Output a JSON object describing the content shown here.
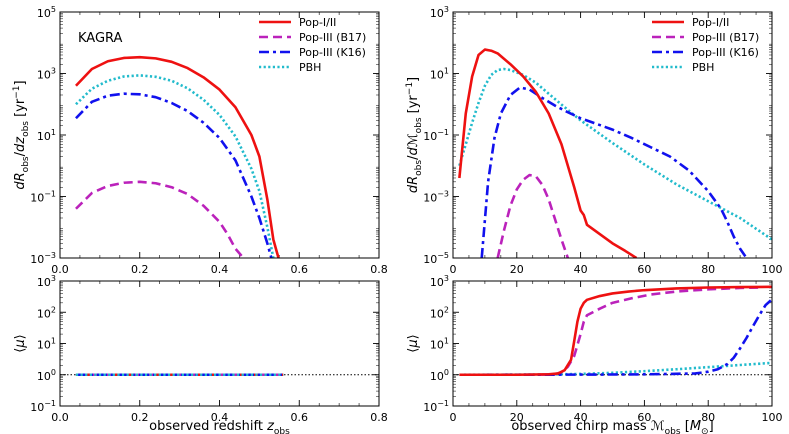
{
  "colors": {
    "pop12": "#ee1111",
    "pop3b17": "#bb22bb",
    "pop3k16": "#1111ee",
    "pbh": "#22bbcc",
    "ref_line": "#000000"
  },
  "chart_data": [
    {
      "type": "line",
      "panel": "top-left",
      "annotation": "KAGRA",
      "xlabel": "",
      "ylabel": "dR_obs/dz_obs [yr^-1]",
      "xlim": [
        0,
        0.8
      ],
      "ylim": [
        0.001,
        100000
      ],
      "yscale": "log",
      "x_ticks": [
        "0.0",
        "0.2",
        "0.4",
        "0.6",
        "0.8"
      ],
      "y_ticks": [
        "10^-3",
        "10^-1",
        "10^1",
        "10^3",
        "10^5"
      ],
      "legend": "top-right",
      "series": [
        {
          "name": "Pop-I/II",
          "style": "solid",
          "x": [
            0.04,
            0.08,
            0.12,
            0.16,
            0.2,
            0.24,
            0.28,
            0.32,
            0.36,
            0.4,
            0.44,
            0.48,
            0.5,
            0.52,
            0.535,
            0.548
          ],
          "y": [
            400,
            1400,
            2500,
            3200,
            3400,
            3100,
            2400,
            1500,
            750,
            300,
            80,
            10,
            2,
            0.08,
            0.004,
            0.001
          ]
        },
        {
          "name": "Pop-III (B17)",
          "style": "dashed",
          "x": [
            0.04,
            0.08,
            0.12,
            0.16,
            0.2,
            0.24,
            0.28,
            0.32,
            0.36,
            0.4,
            0.42,
            0.44,
            0.46
          ],
          "y": [
            0.04,
            0.13,
            0.22,
            0.28,
            0.3,
            0.27,
            0.2,
            0.12,
            0.05,
            0.015,
            0.006,
            0.002,
            0.001
          ]
        },
        {
          "name": "Pop-III (K16)",
          "style": "dashdot",
          "x": [
            0.04,
            0.08,
            0.12,
            0.16,
            0.2,
            0.24,
            0.28,
            0.32,
            0.36,
            0.4,
            0.44,
            0.48,
            0.5,
            0.52,
            0.53
          ],
          "y": [
            35,
            120,
            190,
            220,
            210,
            170,
            110,
            60,
            25,
            8,
            1.5,
            0.1,
            0.02,
            0.003,
            0.001
          ]
        },
        {
          "name": "PBH",
          "style": "dotted",
          "x": [
            0.04,
            0.08,
            0.12,
            0.16,
            0.2,
            0.24,
            0.28,
            0.32,
            0.36,
            0.4,
            0.44,
            0.48,
            0.5,
            0.52,
            0.535
          ],
          "y": [
            100,
            320,
            580,
            800,
            870,
            780,
            580,
            330,
            140,
            45,
            9,
            0.8,
            0.15,
            0.01,
            0.001
          ]
        }
      ]
    },
    {
      "type": "line",
      "panel": "top-right",
      "xlabel": "",
      "ylabel": "dR_obs/dM_obs [yr^-1]",
      "xlim": [
        0,
        100
      ],
      "ylim": [
        1e-05,
        1000
      ],
      "yscale": "log",
      "x_ticks": [
        "0",
        "20",
        "40",
        "60",
        "80",
        "100"
      ],
      "y_ticks": [
        "10^-5",
        "10^-3",
        "10^-1",
        "10^1",
        "10^3"
      ],
      "legend": "top-right",
      "series": [
        {
          "name": "Pop-I/II",
          "style": "solid",
          "x": [
            2,
            4,
            6,
            8,
            10,
            12,
            14,
            18,
            22,
            26,
            30,
            34,
            38,
            40,
            41,
            42,
            46,
            50,
            54,
            57.5
          ],
          "y": [
            0.004,
            0.5,
            8,
            40,
            60,
            55,
            45,
            20,
            8,
            2.5,
            0.5,
            0.05,
            0.002,
            0.00035,
            0.00025,
            0.00012,
            6e-05,
            3e-05,
            1.7e-05,
            1e-05
          ]
        },
        {
          "name": "Pop-III (B17)",
          "style": "dashed",
          "x": [
            14,
            16,
            18,
            20,
            22,
            24,
            26,
            28,
            30,
            32,
            34,
            36
          ],
          "y": [
            1e-05,
            8e-05,
            0.0005,
            0.0017,
            0.0035,
            0.005,
            0.0045,
            0.0024,
            0.0008,
            0.00018,
            4e-05,
            1e-05
          ]
        },
        {
          "name": "Pop-III (K16)",
          "style": "dashdot",
          "x": [
            9,
            11,
            13,
            15,
            18,
            21,
            24,
            28,
            32,
            36,
            40,
            44,
            50,
            56,
            62,
            68,
            74,
            80,
            84,
            86,
            88,
            90,
            92
          ],
          "y": [
            1e-05,
            0.003,
            0.08,
            0.5,
            2,
            3.5,
            3,
            1.6,
            0.9,
            0.55,
            0.35,
            0.25,
            0.15,
            0.08,
            0.04,
            0.02,
            0.007,
            0.0015,
            0.0004,
            0.00015,
            5e-05,
            2e-05,
            1e-05
          ]
        },
        {
          "name": "PBH",
          "style": "dotted",
          "x": [
            2,
            4,
            6,
            8,
            10,
            12,
            14,
            16,
            18,
            22,
            26,
            30,
            35,
            40,
            50,
            60,
            70,
            80,
            90,
            100
          ],
          "y": [
            0.01,
            0.05,
            0.25,
            1.1,
            4,
            9,
            13,
            14,
            13,
            9,
            5,
            2.2,
            0.8,
            0.3,
            0.055,
            0.011,
            0.0025,
            0.0007,
            0.0002,
            4e-05
          ]
        }
      ]
    },
    {
      "type": "line",
      "panel": "bottom-left",
      "xlabel": "observed redshift z_obs",
      "ylabel": "⟨μ⟩",
      "xlim": [
        0,
        0.8
      ],
      "ylim": [
        0.1,
        1000
      ],
      "yscale": "log",
      "x_ticks": [
        "0.0",
        "0.2",
        "0.4",
        "0.6",
        "0.8"
      ],
      "y_ticks": [
        "10^-1",
        "10^0",
        "10^1",
        "10^2",
        "10^3"
      ],
      "reference_line": 1,
      "series": [
        {
          "name": "Pop-I/II",
          "style": "solid",
          "x": [
            0.04,
            0.56
          ],
          "y": [
            1,
            1
          ]
        },
        {
          "name": "Pop-III (B17)",
          "style": "dashed",
          "x": [
            0.04,
            0.56
          ],
          "y": [
            1,
            1
          ]
        },
        {
          "name": "Pop-III (K16)",
          "style": "dashdot",
          "x": [
            0.04,
            0.56
          ],
          "y": [
            1,
            1
          ]
        },
        {
          "name": "PBH",
          "style": "dotted",
          "x": [
            0.04,
            0.56
          ],
          "y": [
            1,
            1
          ]
        }
      ]
    },
    {
      "type": "line",
      "panel": "bottom-right",
      "xlabel": "observed chirp mass M_obs [M_⊙]",
      "ylabel": "⟨μ⟩",
      "xlim": [
        0,
        100
      ],
      "ylim": [
        0.1,
        1000
      ],
      "yscale": "log",
      "x_ticks": [
        "0",
        "20",
        "40",
        "60",
        "80",
        "100"
      ],
      "y_ticks": [
        "10^-1",
        "10^0",
        "10^1",
        "10^2",
        "10^3"
      ],
      "reference_line": 1,
      "series": [
        {
          "name": "Pop-I/II",
          "style": "solid",
          "x": [
            2,
            20,
            30,
            33,
            35,
            37,
            38,
            39,
            40,
            41,
            42,
            46,
            50,
            55,
            60,
            70,
            80,
            90,
            100
          ],
          "y": [
            1,
            1,
            1.03,
            1.1,
            1.4,
            3,
            12,
            50,
            130,
            200,
            250,
            330,
            400,
            460,
            510,
            580,
            620,
            640,
            650
          ]
        },
        {
          "name": "Pop-III (B17)",
          "style": "dashed",
          "x": [
            14,
            26,
            30,
            32,
            34,
            36,
            38,
            40,
            41,
            42,
            46,
            50,
            56,
            62,
            70,
            80,
            90,
            96
          ],
          "y": [
            1,
            1,
            1.02,
            1.05,
            1.2,
            1.8,
            4,
            20,
            50,
            80,
            130,
            200,
            280,
            370,
            460,
            540,
            600,
            620
          ]
        },
        {
          "name": "Pop-III (K16)",
          "style": "dashdot",
          "x": [
            9,
            40,
            60,
            76,
            80,
            83,
            86,
            88,
            90,
            92,
            94,
            96,
            98,
            100
          ],
          "y": [
            1,
            1.01,
            1.03,
            1.1,
            1.25,
            1.5,
            2.2,
            3.5,
            7,
            15,
            35,
            80,
            170,
            260
          ]
        },
        {
          "name": "PBH",
          "style": "dotted",
          "x": [
            2,
            30,
            40,
            50,
            60,
            70,
            80,
            90,
            100
          ],
          "y": [
            1,
            1.02,
            1.06,
            1.15,
            1.3,
            1.5,
            1.75,
            2.05,
            2.4
          ]
        }
      ]
    }
  ]
}
